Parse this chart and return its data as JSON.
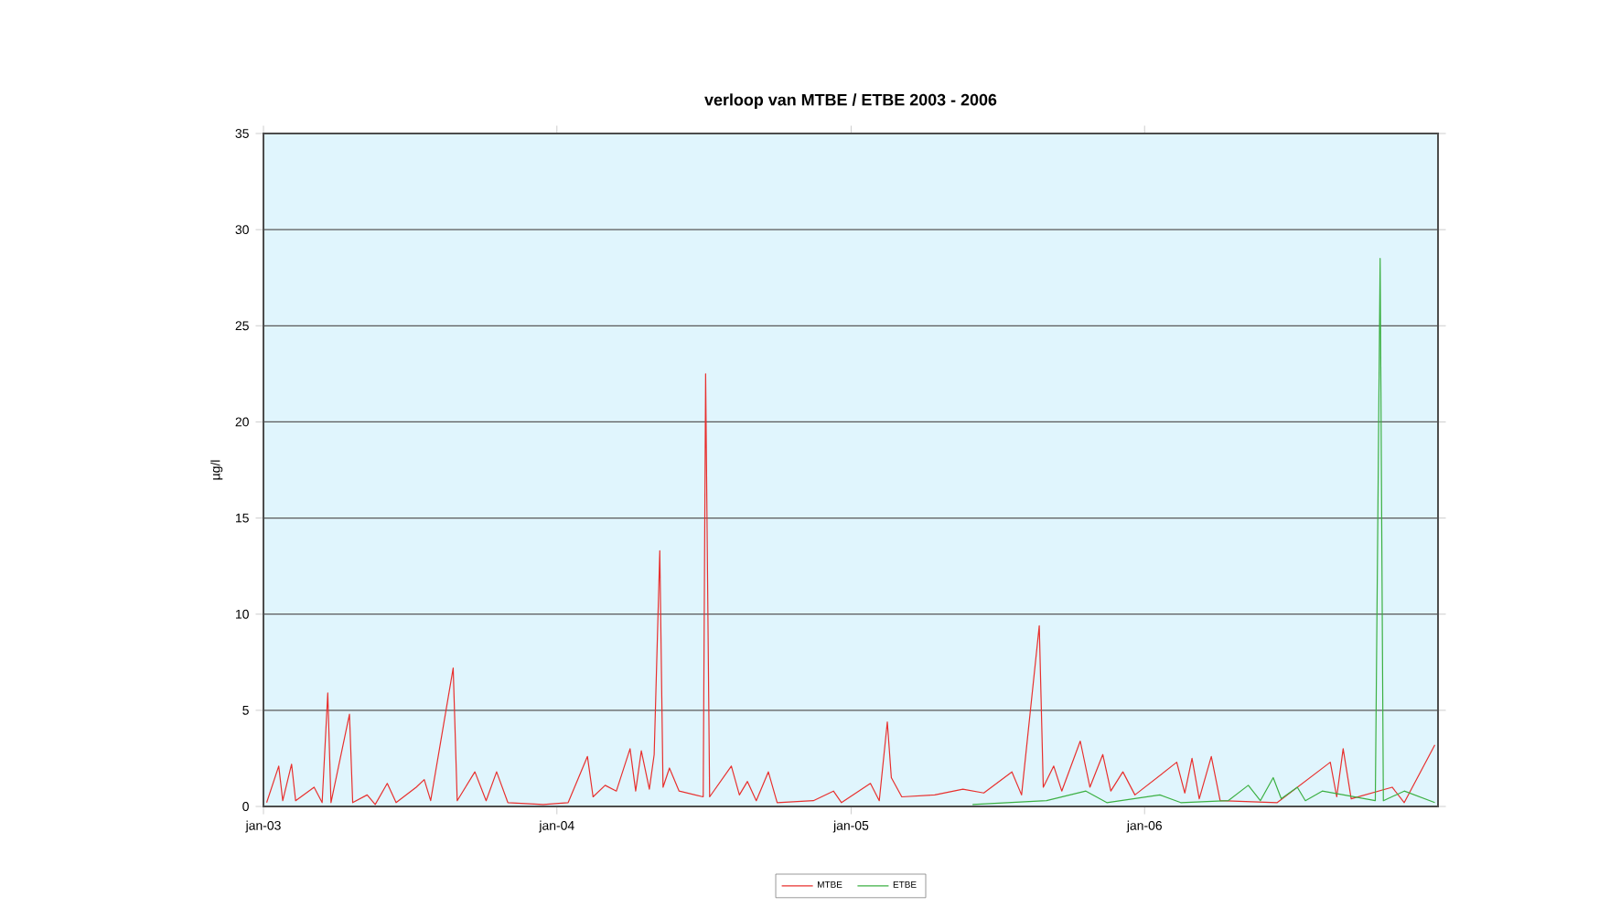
{
  "chart_data": {
    "type": "line",
    "title": "verloop van MTBE / ETBE 2003 - 2006",
    "ylabel": "µg/l",
    "xlim": [
      "2003-01-01",
      "2007-01-01"
    ],
    "xticks": [
      {
        "value": "2003-01-01",
        "label": "jan-03"
      },
      {
        "value": "2004-01-01",
        "label": "jan-04"
      },
      {
        "value": "2005-01-01",
        "label": "jan-05"
      },
      {
        "value": "2006-01-01",
        "label": "jan-06"
      }
    ],
    "ylim": [
      0,
      35
    ],
    "yticks": [
      0,
      5,
      10,
      15,
      20,
      25,
      30,
      35
    ],
    "grid": "y",
    "legend": "bottom",
    "marker": "none",
    "line_style": "solid",
    "series": [
      {
        "name": "MTBE",
        "color": "#e8302e",
        "x": [
          "2003-01-05",
          "2003-01-20",
          "2003-01-25",
          "2003-02-05",
          "2003-02-10",
          "2003-03-05",
          "2003-03-15",
          "2003-03-22",
          "2003-03-26",
          "2003-04-18",
          "2003-04-22",
          "2003-05-10",
          "2003-05-20",
          "2003-06-04",
          "2003-06-15",
          "2003-07-10",
          "2003-07-20",
          "2003-07-28",
          "2003-08-25",
          "2003-08-30",
          "2003-09-21",
          "2003-10-05",
          "2003-10-18",
          "2003-11-01",
          "2003-12-15",
          "2004-01-15",
          "2004-02-08",
          "2004-02-15",
          "2004-03-01",
          "2004-03-15",
          "2004-04-01",
          "2004-04-08",
          "2004-04-15",
          "2004-04-25",
          "2004-05-01",
          "2004-05-08",
          "2004-05-12",
          "2004-05-20",
          "2004-06-01",
          "2004-07-01",
          "2004-07-04",
          "2004-07-09",
          "2004-08-05",
          "2004-08-15",
          "2004-08-25",
          "2004-09-05",
          "2004-09-20",
          "2004-10-01",
          "2004-11-15",
          "2004-12-10",
          "2004-12-20",
          "2005-01-25",
          "2005-02-05",
          "2005-02-15",
          "2005-02-20",
          "2005-03-05",
          "2005-04-15",
          "2005-05-20",
          "2005-06-15",
          "2005-07-20",
          "2005-08-01",
          "2005-08-23",
          "2005-08-28",
          "2005-09-10",
          "2005-09-20",
          "2005-10-13",
          "2005-10-25",
          "2005-11-10",
          "2005-11-20",
          "2005-12-05",
          "2005-12-20",
          "2006-02-10",
          "2006-02-20",
          "2006-03-01",
          "2006-03-10",
          "2006-03-25",
          "2006-04-05",
          "2006-06-15",
          "2006-08-20",
          "2006-08-28",
          "2006-09-05",
          "2006-09-15",
          "2006-11-05",
          "2006-11-20",
          "2006-12-28"
        ],
        "values": [
          0.2,
          2.1,
          0.3,
          2.2,
          0.3,
          1.0,
          0.2,
          5.9,
          0.2,
          4.8,
          0.2,
          0.6,
          0.1,
          1.2,
          0.2,
          1.0,
          1.4,
          0.3,
          7.2,
          0.3,
          1.8,
          0.3,
          1.8,
          0.2,
          0.1,
          0.2,
          2.6,
          0.5,
          1.1,
          0.8,
          3.0,
          0.8,
          2.9,
          0.9,
          2.7,
          13.3,
          1.0,
          2.0,
          0.8,
          0.5,
          22.5,
          0.5,
          2.1,
          0.6,
          1.3,
          0.3,
          1.8,
          0.2,
          0.3,
          0.8,
          0.2,
          1.2,
          0.3,
          4.4,
          1.5,
          0.5,
          0.6,
          0.9,
          0.7,
          1.8,
          0.6,
          9.4,
          1.0,
          2.1,
          0.8,
          3.4,
          1.0,
          2.7,
          0.8,
          1.8,
          0.6,
          2.3,
          0.7,
          2.5,
          0.4,
          2.6,
          0.3,
          0.2,
          2.3,
          0.5,
          3.0,
          0.4,
          1.0,
          0.2,
          3.2
        ]
      },
      {
        "name": "ETBE",
        "color": "#3cb043",
        "x": [
          "2005-06-01",
          "2005-09-01",
          "2005-10-20",
          "2005-11-15",
          "2006-01-20",
          "2006-02-15",
          "2006-04-15",
          "2006-05-10",
          "2006-05-25",
          "2006-06-10",
          "2006-06-20",
          "2006-07-10",
          "2006-07-20",
          "2006-08-10",
          "2006-10-15",
          "2006-10-21",
          "2006-10-25",
          "2006-11-20",
          "2006-12-28"
        ],
        "values": [
          0.1,
          0.3,
          0.8,
          0.2,
          0.6,
          0.2,
          0.3,
          1.1,
          0.3,
          1.5,
          0.4,
          1.0,
          0.3,
          0.8,
          0.3,
          28.5,
          0.3,
          0.8,
          0.2
        ]
      }
    ]
  }
}
